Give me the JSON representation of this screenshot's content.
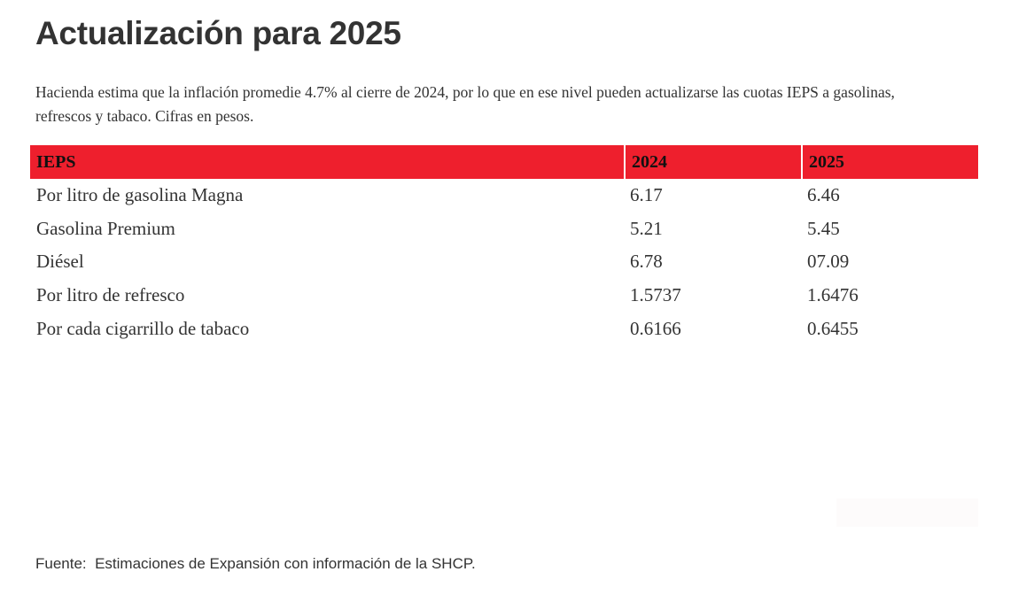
{
  "chart_data": {
    "type": "table",
    "title": "Actualización para 2025",
    "subtitle": "Hacienda estima que la inflación promedie 4.7% al cierre de 2024, por lo que en ese nivel pueden actualizarse las cuotas IEPS a gasolinas, refrescos y tabaco. Cifras en pesos.",
    "columns": [
      "IEPS",
      "2024",
      "2025"
    ],
    "rows": [
      [
        "Por litro de gasolina Magna",
        "6.17",
        "6.46"
      ],
      [
        "Gasolina Premium",
        "5.21",
        "5.45"
      ],
      [
        "Diésel",
        "6.78",
        "07.09"
      ],
      [
        "Por litro de refresco",
        "1.5737",
        "1.6476"
      ],
      [
        "Por cada cigarrillo de tabaco",
        "0.6166",
        "0.6455"
      ]
    ],
    "source": "Fuente:  Estimaciones de Expansión con información de la SHCP."
  },
  "colors": {
    "header_bg": "#ee1f2d",
    "text": "#333333"
  }
}
